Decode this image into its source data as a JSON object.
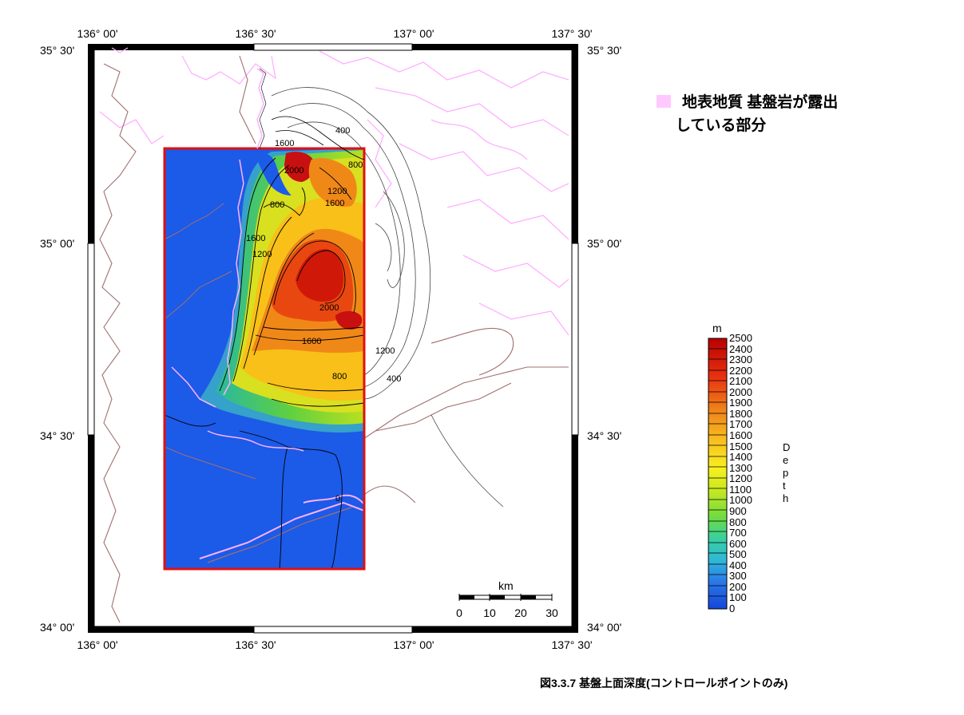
{
  "map": {
    "lon_ticks": [
      "136° 00'",
      "136° 30'",
      "137° 00'",
      "137° 30'"
    ],
    "lat_ticks": [
      "35° 30'",
      "35° 00'",
      "34° 30'",
      "34° 00'"
    ],
    "contour_labels": [
      "400",
      "800",
      "1200",
      "1600",
      "2000",
      "800",
      "1600",
      "2000",
      "1600",
      "1200",
      "800",
      "400",
      "1200",
      "1600",
      "0"
    ]
  },
  "legend": {
    "line1": "地表地質  基盤岩が露出",
    "line2": "している部分",
    "swatch_color": "#ffc8ff"
  },
  "colorbar": {
    "unit": "m",
    "title_letters": [
      "D",
      "e",
      "p",
      "t",
      "h"
    ],
    "labels": [
      "2500",
      "2400",
      "2300",
      "2200",
      "2100",
      "2000",
      "1900",
      "1800",
      "1700",
      "1600",
      "1500",
      "1400",
      "1300",
      "1200",
      "1100",
      "1000",
      "900",
      "800",
      "700",
      "600",
      "500",
      "400",
      "300",
      "200",
      "100",
      "0"
    ]
  },
  "scale_bar": {
    "unit": "km",
    "ticks": [
      "0",
      "10",
      "20",
      "30"
    ]
  },
  "caption": "図3.3.7  基盤上面深度(コントロールポイントのみ)",
  "colors": {
    "study_area_border": "#e01010",
    "basement_pink": "#ffc8ff",
    "coastline": "#a07070"
  }
}
